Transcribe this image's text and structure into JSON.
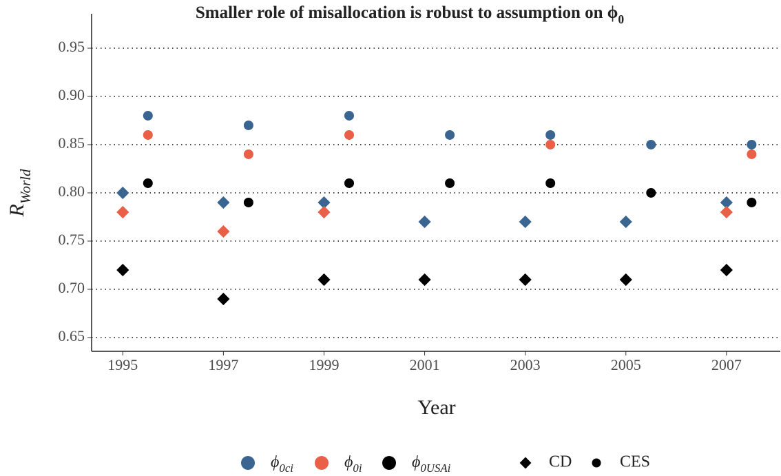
{
  "chart_data": {
    "type": "scatter",
    "title": "Smaller role of misallocation is robust to assumption on ϕ0",
    "x_label": "Year",
    "y_label": "RWorld",
    "xlim": [
      1994.38,
      2008.07
    ],
    "xticks": [
      1995,
      1997,
      1999,
      2001,
      2003,
      2005,
      2007
    ],
    "ylim": [
      0.6357,
      0.9607
    ],
    "yticks": [
      {
        "value": 0.65,
        "label": "0.65"
      },
      {
        "value": 0.7,
        "label": "0.70"
      },
      {
        "value": 0.75,
        "label": "0.75"
      },
      {
        "value": 0.8,
        "label": "0.80"
      },
      {
        "value": 0.85,
        "label": "0.85"
      },
      {
        "value": 0.9,
        "label": "0.90"
      },
      {
        "value": 0.95,
        "label": "0.95"
      }
    ],
    "grid": true,
    "legend": "bottom",
    "shapes": [
      {
        "name": "CD",
        "marker": "diamond"
      },
      {
        "name": "CES",
        "marker": "circle"
      }
    ],
    "series": [
      {
        "name": "ϕ0ci",
        "color": "#3a6591",
        "groups": [
          {
            "x": [
              1995,
              1997,
              1999,
              2001,
              2003,
              2005,
              2007
            ],
            "values": [
              0.8,
              0.79,
              0.79,
              0.77,
              0.77,
              0.77,
              0.79
            ]
          },
          {
            "x": [
              1995.5,
              1997.5,
              1999.5,
              2001.5,
              2003.5,
              2005.5,
              2007.5
            ],
            "values": [
              0.88,
              0.87,
              0.88,
              0.86,
              0.86,
              0.85,
              0.85
            ]
          }
        ]
      },
      {
        "name": "ϕ0i",
        "color": "#ea5f48",
        "groups": [
          {
            "x": [
              1995,
              1997,
              1999,
              2001,
              2003,
              2005,
              2007
            ],
            "values": [
              0.78,
              0.76,
              0.78,
              null,
              null,
              null,
              0.78
            ]
          },
          {
            "x": [
              1995.5,
              1997.5,
              1999.5,
              2001.5,
              2003.5,
              2005.5,
              2007.5
            ],
            "values": [
              0.86,
              0.84,
              0.86,
              null,
              0.85,
              null,
              0.84
            ]
          }
        ]
      },
      {
        "name": "ϕ0USAi",
        "color": "#000000",
        "groups": [
          {
            "x": [
              1995,
              1997,
              1999,
              2001,
              2003,
              2005,
              2007
            ],
            "values": [
              0.72,
              0.69,
              0.71,
              0.71,
              0.71,
              0.71,
              0.72
            ]
          },
          {
            "x": [
              1995.5,
              1997.5,
              1999.5,
              2001.5,
              2003.5,
              2005.5,
              2007.5
            ],
            "values": [
              0.81,
              0.79,
              0.81,
              0.81,
              0.81,
              0.8,
              0.79
            ]
          }
        ]
      }
    ]
  }
}
